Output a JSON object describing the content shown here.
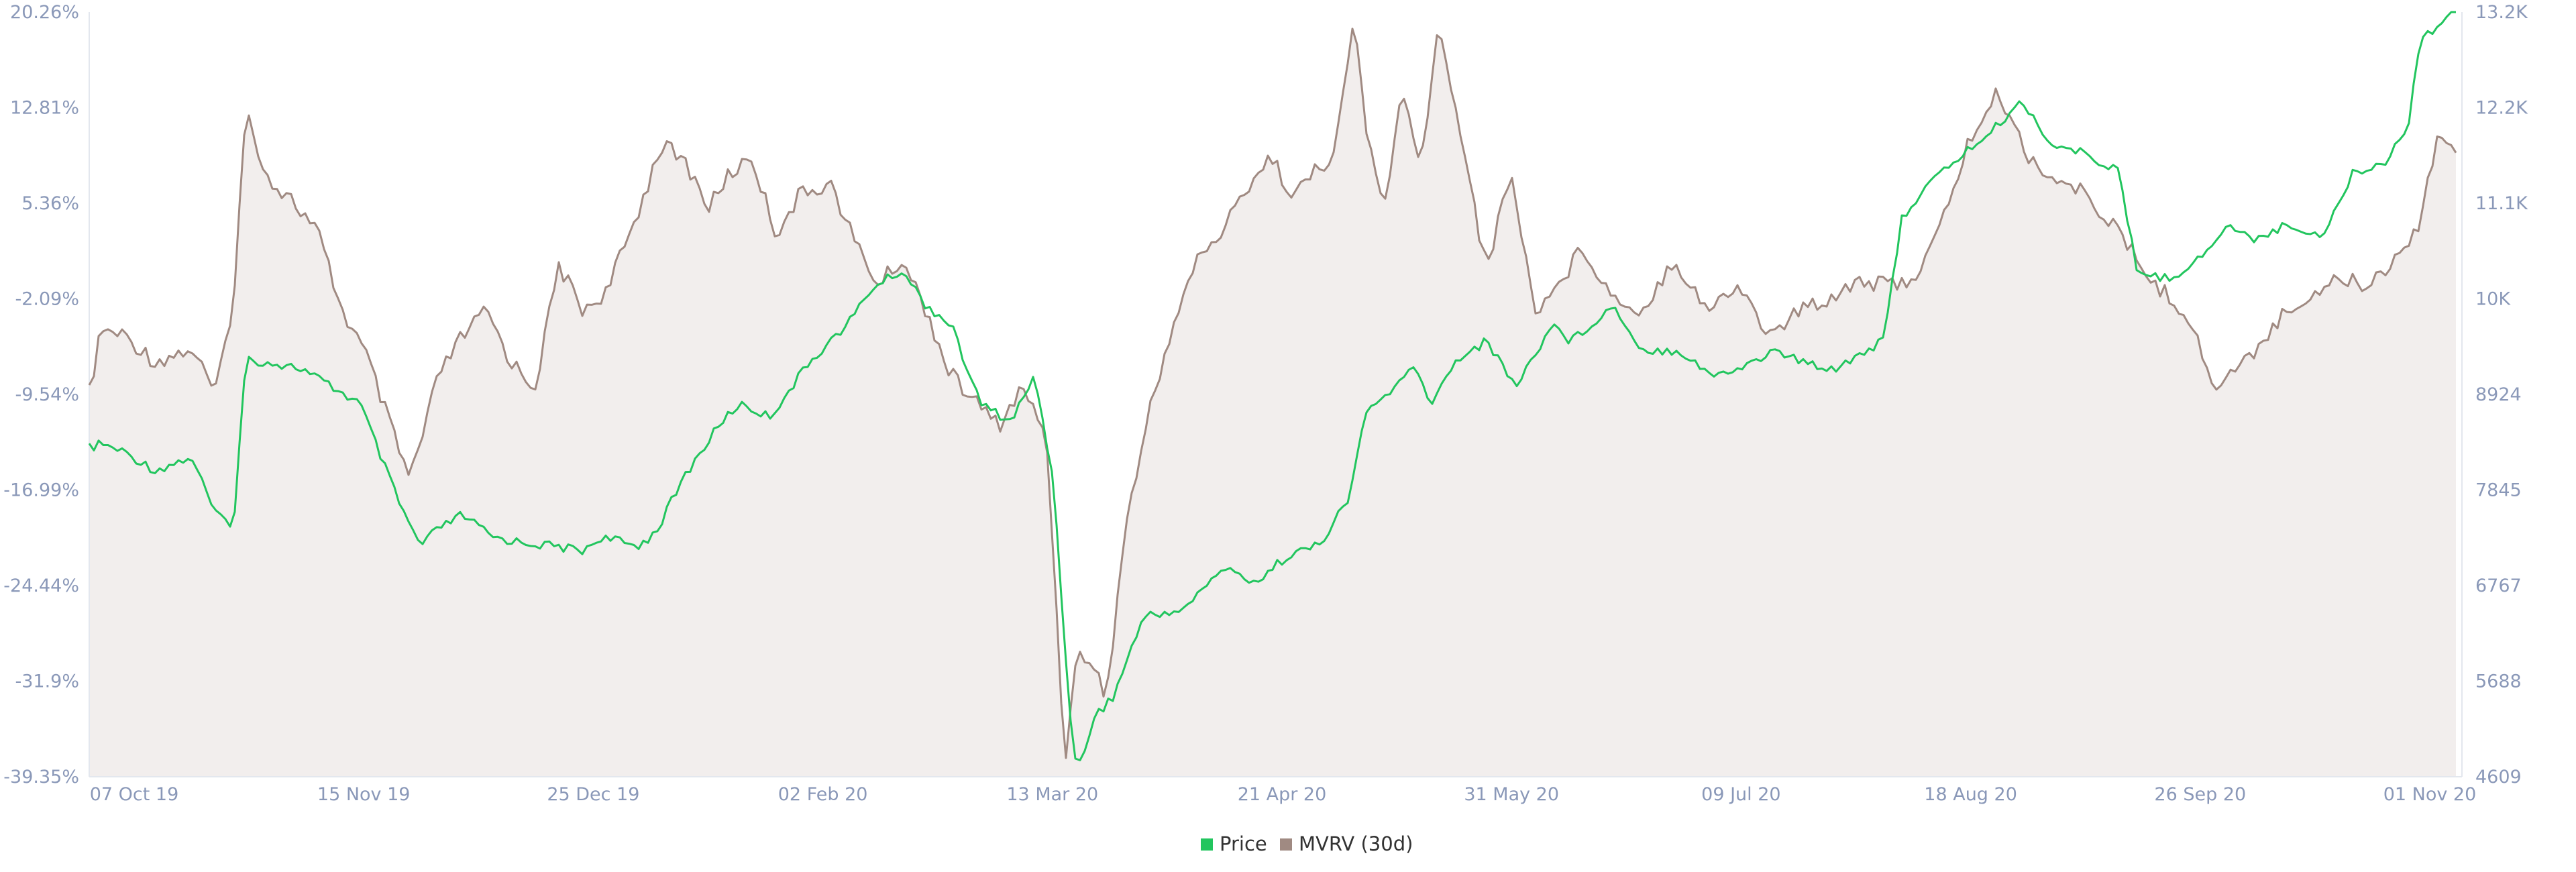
{
  "chart_data": {
    "type": "line",
    "title": "",
    "xlabel": "",
    "ylabel_left": "",
    "ylabel_right": "",
    "x_tick_labels": [
      "07 Oct 19",
      "15 Nov 19",
      "25 Dec 19",
      "02 Feb 20",
      "13 Mar 20",
      "21 Apr 20",
      "31 May 20",
      "09 Jul 20",
      "18 Aug 20",
      "26 Sep 20",
      "01 Nov 20"
    ],
    "left_axis": {
      "ticks": [
        "20.26%",
        "12.81%",
        "5.36%",
        "-2.09%",
        "-9.54%",
        "-16.99%",
        "-24.44%",
        "-31.9%",
        "-39.35%"
      ],
      "ylim": [
        -39.35,
        20.26
      ],
      "unit": "%"
    },
    "right_axis": {
      "ticks": [
        "13.2K",
        "12.2K",
        "11.1K",
        "10K",
        "8924",
        "7845",
        "6767",
        "5688",
        "4609"
      ],
      "ylim": [
        4609,
        13200
      ]
    },
    "grid": false,
    "legend": {
      "position": "bottom-center",
      "entries": [
        "Price",
        "MVRV (30d)"
      ]
    },
    "colors": {
      "price": "#22c55e",
      "mvrv_line": "#a08a82",
      "mvrv_fill": "#f2eeed",
      "axis_text": "#8a98b8",
      "axis_line": "#e3e7ee"
    },
    "series": [
      {
        "name": "Price",
        "axis": "right",
        "color": "#22c55e",
        "x": [
          "2019-10-01",
          "2019-10-03",
          "2019-10-07",
          "2019-10-12",
          "2019-10-18",
          "2019-10-22",
          "2019-10-25",
          "2019-10-27",
          "2019-11-01",
          "2019-11-05",
          "2019-11-10",
          "2019-11-15",
          "2019-11-19",
          "2019-11-22",
          "2019-11-25",
          "2019-11-28",
          "2019-12-02",
          "2019-12-07",
          "2019-12-11",
          "2019-12-17",
          "2019-12-22",
          "2019-12-25",
          "2019-12-31",
          "2020-01-03",
          "2020-01-08",
          "2020-01-14",
          "2020-01-17",
          "2020-01-22",
          "2020-01-29",
          "2020-02-04",
          "2020-02-08",
          "2020-02-13",
          "2020-02-17",
          "2020-02-21",
          "2020-02-26",
          "2020-03-02",
          "2020-03-06",
          "2020-03-09",
          "2020-03-12",
          "2020-03-13",
          "2020-03-16",
          "2020-03-19",
          "2020-03-24",
          "2020-03-31",
          "2020-04-06",
          "2020-04-12",
          "2020-04-17",
          "2020-04-22",
          "2020-04-27",
          "2020-04-30",
          "2020-05-05",
          "2020-05-08",
          "2020-05-11",
          "2020-05-15",
          "2020-05-20",
          "2020-05-25",
          "2020-05-31",
          "2020-06-03",
          "2020-06-10",
          "2020-06-15",
          "2020-06-21",
          "2020-06-27",
          "2020-07-01",
          "2020-07-07",
          "2020-07-12",
          "2020-07-17",
          "2020-07-22",
          "2020-07-25",
          "2020-07-28",
          "2020-08-02",
          "2020-08-07",
          "2020-08-11",
          "2020-08-17",
          "2020-08-22",
          "2020-08-28",
          "2020-09-02",
          "2020-09-05",
          "2020-09-10",
          "2020-09-15",
          "2020-09-20",
          "2020-09-24",
          "2020-09-30",
          "2020-10-06",
          "2020-10-11",
          "2020-10-16",
          "2020-10-20",
          "2020-10-22",
          "2020-10-26",
          "2020-10-28"
        ],
        "values": [
          8300,
          8350,
          8250,
          8050,
          8200,
          7550,
          7450,
          9300,
          9250,
          9200,
          9000,
          8800,
          8100,
          7600,
          7200,
          7400,
          7550,
          7300,
          7250,
          7200,
          7150,
          7300,
          7200,
          7350,
          8000,
          8600,
          8800,
          8650,
          9300,
          9700,
          10100,
          10300,
          9900,
          9700,
          8800,
          8600,
          9100,
          8000,
          5200,
          4650,
          5300,
          5500,
          6400,
          6500,
          6950,
          6800,
          7100,
          7200,
          7700,
          8700,
          9000,
          9200,
          8800,
          9300,
          9500,
          9000,
          9700,
          9500,
          9900,
          9400,
          9400,
          9100,
          9200,
          9400,
          9250,
          9200,
          9400,
          9500,
          10900,
          11300,
          11600,
          11800,
          12200,
          11700,
          11600,
          11400,
          10300,
          10200,
          10400,
          10800,
          10650,
          10800,
          10700,
          11400,
          11500,
          11900,
          12900,
          13100,
          13300
        ]
      },
      {
        "name": "MVRV (30d)",
        "axis": "left",
        "color": "#a08a82",
        "x": [
          "2019-10-01",
          "2019-10-03",
          "2019-10-07",
          "2019-10-12",
          "2019-10-18",
          "2019-10-22",
          "2019-10-25",
          "2019-10-27",
          "2019-10-31",
          "2019-11-03",
          "2019-11-08",
          "2019-11-12",
          "2019-11-16",
          "2019-11-20",
          "2019-11-23",
          "2019-11-25",
          "2019-11-28",
          "2019-12-02",
          "2019-12-06",
          "2019-12-10",
          "2019-12-14",
          "2019-12-18",
          "2019-12-22",
          "2019-12-26",
          "2019-12-31",
          "2020-01-04",
          "2020-01-08",
          "2020-01-12",
          "2020-01-15",
          "2020-01-19",
          "2020-01-23",
          "2020-01-27",
          "2020-02-01",
          "2020-02-05",
          "2020-02-09",
          "2020-02-13",
          "2020-02-17",
          "2020-02-21",
          "2020-02-25",
          "2020-02-29",
          "2020-03-04",
          "2020-03-08",
          "2020-03-11",
          "2020-03-13",
          "2020-03-15",
          "2020-03-18",
          "2020-03-21",
          "2020-03-25",
          "2020-03-29",
          "2020-04-02",
          "2020-04-06",
          "2020-04-10",
          "2020-04-14",
          "2020-04-18",
          "2020-04-22",
          "2020-04-25",
          "2020-04-28",
          "2020-04-30",
          "2020-05-03",
          "2020-05-06",
          "2020-05-09",
          "2020-05-12",
          "2020-05-16",
          "2020-05-20",
          "2020-05-24",
          "2020-05-28",
          "2020-06-01",
          "2020-06-05",
          "2020-06-10",
          "2020-06-15",
          "2020-06-20",
          "2020-06-26",
          "2020-07-01",
          "2020-07-06",
          "2020-07-11",
          "2020-07-16",
          "2020-07-21",
          "2020-07-24",
          "2020-07-27",
          "2020-07-31",
          "2020-08-03",
          "2020-08-08",
          "2020-08-13",
          "2020-08-18",
          "2020-08-23",
          "2020-08-28",
          "2020-09-02",
          "2020-09-05",
          "2020-09-08",
          "2020-09-13",
          "2020-09-18",
          "2020-09-23",
          "2020-09-28",
          "2020-10-03",
          "2020-10-08",
          "2020-10-13",
          "2020-10-18",
          "2020-10-22",
          "2020-10-25",
          "2020-10-28"
        ],
        "values": [
          -9.5,
          -4.5,
          -5.0,
          -7.0,
          -6.0,
          -9.5,
          -2.0,
          12.5,
          7.0,
          6.0,
          3.0,
          -3.0,
          -6.5,
          -12.0,
          -16.0,
          -13.5,
          -8.0,
          -5.0,
          -3.0,
          -7.0,
          -9.0,
          0.5,
          -3.0,
          -1.5,
          4.5,
          10.0,
          8.5,
          5.0,
          7.5,
          9.0,
          3.0,
          6.0,
          7.0,
          2.5,
          -1.0,
          1.0,
          -3.0,
          -8.0,
          -10.0,
          -12.0,
          -9.0,
          -13.0,
          -38.0,
          -30.0,
          -30.0,
          -33.0,
          -20.0,
          -11.0,
          -4.0,
          1.0,
          3.0,
          6.5,
          9.0,
          6.0,
          8.0,
          9.5,
          20.0,
          11.0,
          5.0,
          14.0,
          8.0,
          19.0,
          10.5,
          0.0,
          8.0,
          -3.0,
          -1.0,
          2.0,
          -2.0,
          -3.0,
          1.0,
          -3.0,
          -1.0,
          -5.0,
          -3.0,
          -2.0,
          -0.5,
          -1.0,
          -1.0,
          0.0,
          3.0,
          10.0,
          14.0,
          9.0,
          7.0,
          6.0,
          3.0,
          1.0,
          -1.0,
          -3.0,
          -9.0,
          -7.0,
          -4.0,
          -2.0,
          -0.5,
          -1.0,
          1.0,
          4.0,
          11.0,
          9.0
        ]
      }
    ]
  }
}
